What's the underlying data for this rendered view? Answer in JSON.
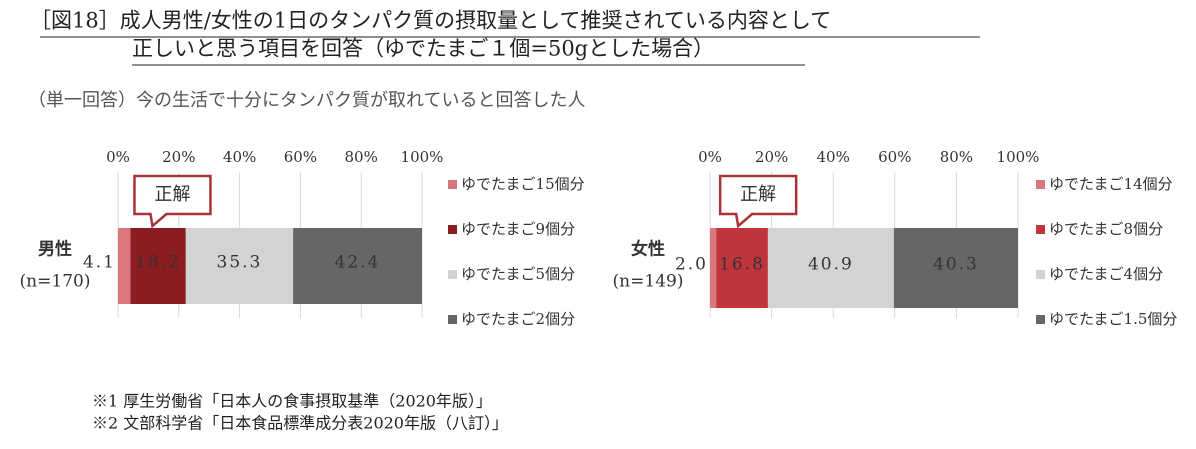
{
  "title_lines": [
    "［図18］成人男性/女性の1日のタンパク質の摂取量として推奨されている内容として",
    "正しいと思う項目を回答（ゆでたまご１個=50gとした場合）"
  ],
  "subtitle": "（単一回答）今の生活で十分にタンパク質が取れていると回答した人",
  "notes": [
    "※1 厚生労働省「日本人の食事摂取基準（2020年版）」",
    "※2 文部科学省「日本食品標準成分表2020年版（八訂）」"
  ],
  "chart_data": [
    {
      "type": "stacked_bar",
      "orientation": "horizontal",
      "categories": [
        "男性"
      ],
      "category_notes": [
        "(n=170)"
      ],
      "annotation": "正解",
      "xlim": [
        0,
        100
      ],
      "xticks": [
        {
          "value": 0,
          "label": "0%"
        },
        {
          "value": 20,
          "label": "20%"
        },
        {
          "value": 40,
          "label": "40%"
        },
        {
          "value": 60,
          "label": "60%"
        },
        {
          "value": 80,
          "label": "80%"
        },
        {
          "value": 100,
          "label": "100%"
        }
      ],
      "grid": true,
      "legend": "right",
      "series": [
        {
          "name": "ゆでたまご15個分",
          "color": "#d9777f",
          "values": [
            4.1
          ]
        },
        {
          "name": "ゆでたまご9個分",
          "color": "#8b1c1f",
          "values": [
            18.2
          ]
        },
        {
          "name": "ゆでたまご5個分",
          "color": "#d3d3d3",
          "values": [
            35.3
          ]
        },
        {
          "name": "ゆでたまご2個分",
          "color": "#666666",
          "values": [
            42.4
          ]
        }
      ]
    },
    {
      "type": "stacked_bar",
      "orientation": "horizontal",
      "categories": [
        "女性"
      ],
      "category_notes": [
        "(n=149)"
      ],
      "annotation": "正解",
      "xlim": [
        0,
        100
      ],
      "xticks": [
        {
          "value": 0,
          "label": "0%"
        },
        {
          "value": 20,
          "label": "20%"
        },
        {
          "value": 40,
          "label": "40%"
        },
        {
          "value": 60,
          "label": "60%"
        },
        {
          "value": 80,
          "label": "80%"
        },
        {
          "value": 100,
          "label": "100%"
        }
      ],
      "grid": true,
      "legend": "right",
      "series": [
        {
          "name": "ゆでたまご14個分",
          "color": "#d9777f",
          "values": [
            2
          ],
          "value_labels": [
            "2.0"
          ]
        },
        {
          "name": "ゆでたまご8個分",
          "color": "#c0343c",
          "values": [
            16.8
          ]
        },
        {
          "name": "ゆでたまご4個分",
          "color": "#d3d3d3",
          "values": [
            40.9
          ]
        },
        {
          "name": "ゆでたまご1.5個分",
          "color": "#666666",
          "values": [
            40.3
          ]
        }
      ]
    }
  ]
}
